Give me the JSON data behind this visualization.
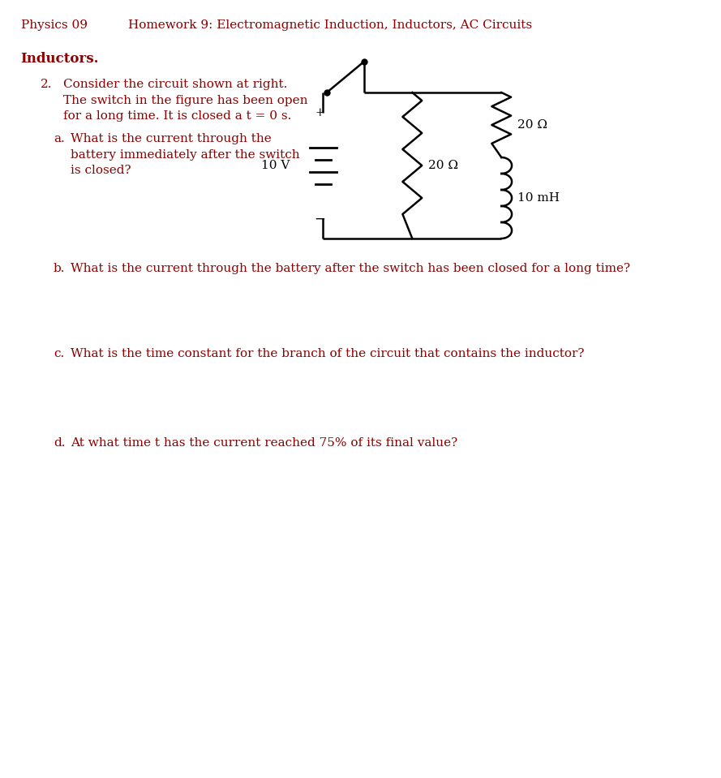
{
  "header_left": "Physics 09",
  "header_center": "Homework 9: Electromagnetic Induction, Inductors, AC Circuits",
  "section_title": "Inductors.",
  "problem_number": "2.",
  "problem_intro": "Consider the circuit shown at right.\nThe switch in the figure has been open\nfor a long time. It is closed a t = 0 s.",
  "sub_a_label": "a.",
  "sub_a_text": "What is the current through the\nbattery immediately after the switch\nis closed?",
  "sub_b_label": "b.",
  "sub_b_text": "What is the current through the battery after the switch has been closed for a long time?",
  "sub_c_label": "c.",
  "sub_c_text": "What is the time constant for the branch of the circuit that contains the inductor?",
  "sub_d_label": "d.",
  "sub_d_text": "At what time t has the current reached 75% of its final value?",
  "circuit_battery_label": "10 V",
  "circuit_r1_label": "20 Ω",
  "circuit_r2_label": "20 Ω",
  "circuit_l_label": "10 mH",
  "text_color": "#8B0000",
  "bg_color": "#ffffff",
  "circuit_color": "#000000",
  "font_size_header": 11,
  "font_size_body": 11,
  "font_size_section": 12,
  "font_size_circuit": 11
}
